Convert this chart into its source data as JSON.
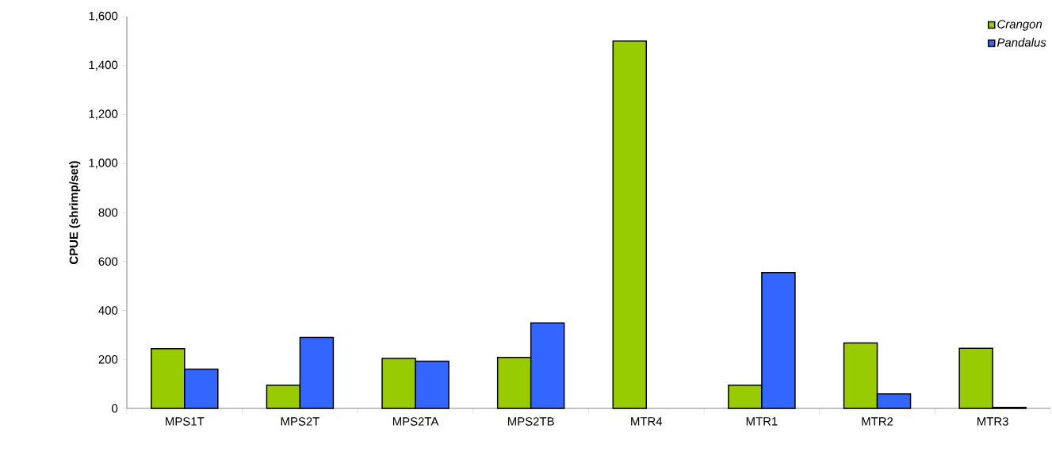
{
  "chart_data": {
    "type": "bar",
    "ylabel": "CPUE (shrimp/set)",
    "categories": [
      "MPS1T",
      "MPS2T",
      "MPS2TA",
      "MPS2TB",
      "MTR4",
      "MTR1",
      "MTR2",
      "MTR3"
    ],
    "series": [
      {
        "name": "Crangon",
        "color": "#99cc00",
        "values": [
          244,
          95,
          204,
          208,
          1500,
          95,
          267,
          245
        ]
      },
      {
        "name": "Pandalus",
        "color": "#3366ff",
        "values": [
          160,
          290,
          193,
          349,
          null,
          555,
          59,
          4
        ]
      }
    ],
    "ylim": [
      0,
      1600
    ],
    "yticks": [
      0,
      200,
      400,
      600,
      800,
      {
        "value": 1000,
        "label": "1,000"
      },
      {
        "value": 1200,
        "label": "1,200"
      },
      {
        "value": 1400,
        "label": "1,400"
      },
      {
        "value": 1600,
        "label": "1,600"
      }
    ],
    "grid": false,
    "legend": "top right"
  }
}
